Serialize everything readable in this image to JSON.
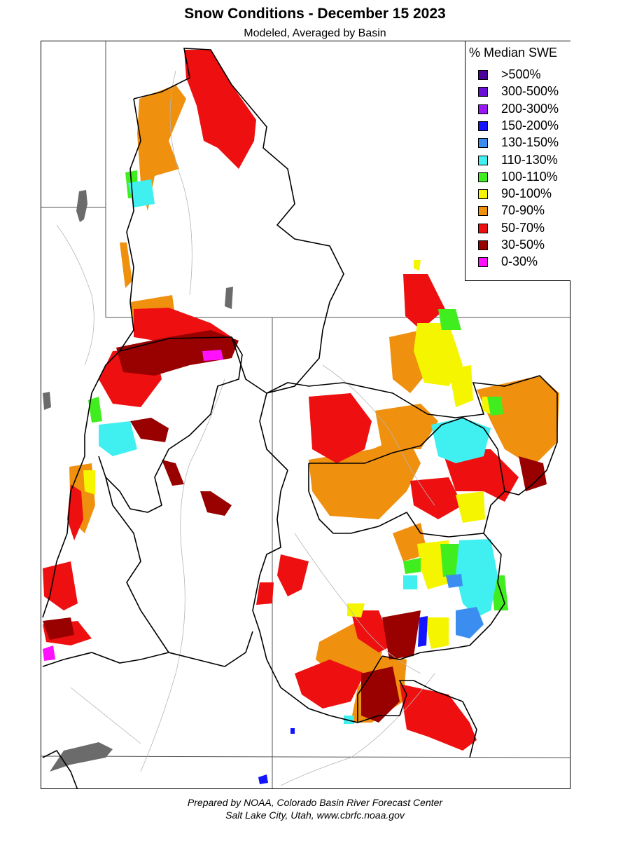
{
  "header": {
    "title": "Snow Conditions - December 15 2023",
    "subtitle": "Modeled, Averaged by Basin"
  },
  "legend": {
    "title": "% Median SWE",
    "items": [
      {
        "label": ">500%",
        "color": "#4b0099"
      },
      {
        "label": "300-500%",
        "color": "#6a0fd6"
      },
      {
        "label": "200-300%",
        "color": "#9a17f5"
      },
      {
        "label": "150-200%",
        "color": "#1414ff"
      },
      {
        "label": "130-150%",
        "color": "#3b8ef0"
      },
      {
        "label": "110-130%",
        "color": "#40f0f0"
      },
      {
        "label": "100-110%",
        "color": "#40ee20"
      },
      {
        "label": "90-100%",
        "color": "#f5f500"
      },
      {
        "label": "70-90%",
        "color": "#f0900f"
      },
      {
        "label": "50-70%",
        "color": "#ee1010"
      },
      {
        "label": "30-50%",
        "color": "#990000"
      },
      {
        "label": "0-30%",
        "color": "#ff10ff"
      }
    ]
  },
  "footer": {
    "line1": "Prepared by NOAA, Colorado Basin River Forecast Center",
    "line2": "Salt Lake City, Utah, www.cbrfc.noaa.gov"
  }
}
